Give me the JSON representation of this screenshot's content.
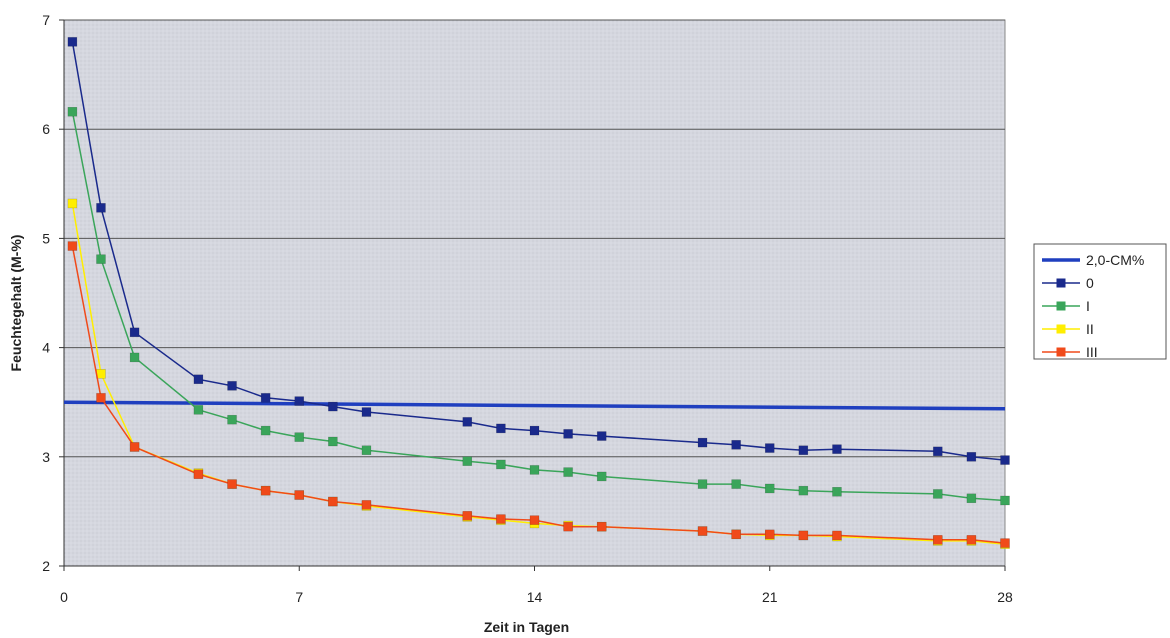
{
  "chart_data": {
    "type": "line",
    "xlabel": "Zeit in Tagen",
    "ylabel": "Feuchtegehalt (M-%)",
    "xlim": [
      0,
      28
    ],
    "ylim": [
      2,
      7
    ],
    "xticks": [
      0,
      7,
      14,
      21,
      28
    ],
    "yticks": [
      2,
      3,
      4,
      5,
      6,
      7
    ],
    "grid": "horizontal",
    "legend_position": "right",
    "plot_background": "#d6d8e0",
    "series": [
      {
        "name": "2,0-CM%",
        "color": "#1f3fbf",
        "marker": false,
        "x": [
          0,
          28
        ],
        "y": [
          3.5,
          3.44
        ]
      },
      {
        "name": "0",
        "color": "#1a2a8c",
        "marker": true,
        "x": [
          0.25,
          1.1,
          2.1,
          4,
          5,
          6,
          7,
          8,
          9,
          12,
          13,
          14,
          15,
          16,
          19,
          20,
          21,
          22,
          23,
          26,
          27,
          28
        ],
        "y": [
          6.8,
          5.28,
          4.14,
          3.71,
          3.65,
          3.54,
          3.51,
          3.46,
          3.41,
          3.32,
          3.26,
          3.24,
          3.21,
          3.19,
          3.13,
          3.11,
          3.08,
          3.06,
          3.07,
          3.05,
          3.0,
          2.97
        ]
      },
      {
        "name": "I",
        "color": "#3aa55a",
        "marker": true,
        "x": [
          0.25,
          1.1,
          2.1,
          4,
          5,
          6,
          7,
          8,
          9,
          12,
          13,
          14,
          15,
          16,
          19,
          20,
          21,
          22,
          23,
          26,
          27,
          28
        ],
        "y": [
          6.16,
          4.81,
          3.91,
          3.43,
          3.34,
          3.24,
          3.18,
          3.14,
          3.06,
          2.96,
          2.93,
          2.88,
          2.86,
          2.82,
          2.75,
          2.75,
          2.71,
          2.69,
          2.68,
          2.66,
          2.62,
          2.6
        ]
      },
      {
        "name": "II",
        "color": "#ffee00",
        "marker": true,
        "x": [
          0.25,
          1.1,
          2.1,
          4,
          5,
          6,
          7,
          8,
          9,
          12,
          13,
          14,
          15,
          16,
          19,
          20,
          21,
          22,
          23,
          26,
          27,
          28
        ],
        "y": [
          5.32,
          3.76,
          3.09,
          2.85,
          2.75,
          2.69,
          2.65,
          2.59,
          2.55,
          2.45,
          2.42,
          2.39,
          2.37,
          2.36,
          2.32,
          2.29,
          2.28,
          2.28,
          2.27,
          2.23,
          2.23,
          2.2
        ]
      },
      {
        "name": "III",
        "color": "#f04a1a",
        "marker": true,
        "x": [
          0.25,
          1.1,
          2.1,
          4,
          5,
          6,
          7,
          8,
          9,
          12,
          13,
          14,
          15,
          16,
          19,
          20,
          21,
          22,
          23,
          26,
          27,
          28
        ],
        "y": [
          4.93,
          3.54,
          3.09,
          2.84,
          2.75,
          2.69,
          2.65,
          2.59,
          2.56,
          2.46,
          2.43,
          2.42,
          2.36,
          2.36,
          2.32,
          2.29,
          2.29,
          2.28,
          2.28,
          2.24,
          2.24,
          2.21
        ]
      }
    ]
  }
}
